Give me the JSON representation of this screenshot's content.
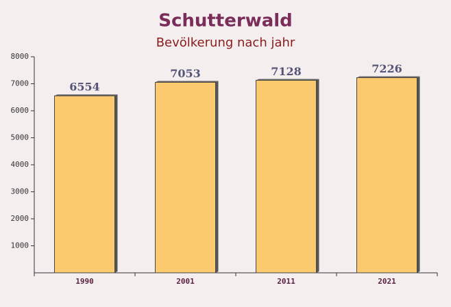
{
  "chart_data": {
    "type": "bar",
    "title": "Schutterwald",
    "subtitle": "Bevölkerung nach jahr",
    "categories": [
      "1990",
      "2001",
      "2011",
      "2021"
    ],
    "values": [
      6554,
      7053,
      7128,
      7226
    ],
    "color": "#fcc45f",
    "ylim": [
      0,
      8000
    ],
    "yticks": [
      1000,
      2000,
      3000,
      4000,
      5000,
      6000,
      7000,
      8000
    ],
    "grid": false
  }
}
